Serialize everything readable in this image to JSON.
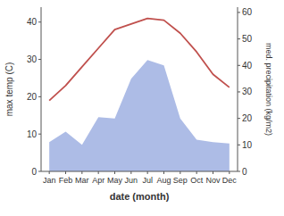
{
  "chart_data": {
    "type": "line",
    "xlabel": "date (month)",
    "ylabel": "max temp (C)",
    "y2label": "med. precipitation (kg/m2)",
    "categories": [
      "Jan",
      "Feb",
      "Mar",
      "Apr",
      "May",
      "Jun",
      "Jul",
      "Aug",
      "Sep",
      "Oct",
      "Nov",
      "Dec"
    ],
    "series": [
      {
        "type": "area",
        "axis": "y2",
        "color": "#adbce6",
        "values": [
          11,
          15,
          10,
          20.5,
          20,
          35,
          42,
          40,
          20,
          12,
          11,
          10.5
        ]
      },
      {
        "type": "line",
        "color": "#c0504d",
        "values": [
          19,
          23,
          28,
          33,
          38,
          39.5,
          41,
          40.5,
          37,
          32,
          26,
          22.5
        ]
      }
    ],
    "ylim": [
      0,
      44
    ],
    "yticks": [
      0,
      10,
      20,
      30,
      40
    ],
    "y2lim": [
      0,
      62
    ],
    "y2ticks": [
      0,
      10,
      20,
      30,
      40,
      50,
      60
    ],
    "grid": false
  }
}
